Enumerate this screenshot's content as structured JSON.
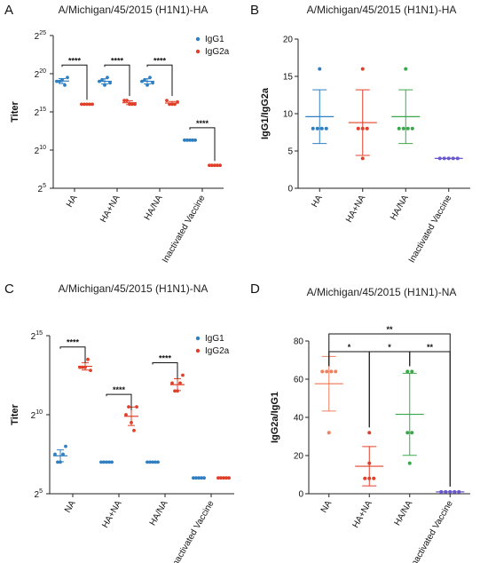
{
  "chart_data": [
    {
      "panel": "A",
      "type": "scatter",
      "title": "A/Michigan/45/2015 (H1N1)-HA",
      "ylabel": "Titer",
      "yscale": "log2",
      "ylim": [
        5,
        25
      ],
      "yticks": [
        {
          "base": "2",
          "exp": "5"
        },
        {
          "base": "2",
          "exp": "10"
        },
        {
          "base": "2",
          "exp": "15"
        },
        {
          "base": "2",
          "exp": "20"
        },
        {
          "base": "2",
          "exp": "25"
        }
      ],
      "categories": [
        "HA",
        "HA+NA",
        "HA/NA",
        "Inactivated Vaccine"
      ],
      "legend": [
        "IgG1",
        "IgG2a"
      ],
      "series": [
        {
          "name": "IgG1",
          "color": "#2f7fc1",
          "points": [
            [
              19,
              19,
              19.2,
              18.5,
              19.5
            ],
            [
              19,
              19.2,
              18.5,
              19.5,
              18.8
            ],
            [
              19,
              19.2,
              18.5,
              19.5,
              18.8
            ],
            [
              11.3,
              11.3,
              11.3,
              11.3,
              11.3
            ]
          ]
        },
        {
          "name": "IgG2a",
          "color": "#e0402a",
          "points": [
            [
              16,
              16,
              16,
              16,
              16
            ],
            [
              16.5,
              16.5,
              16,
              16,
              16
            ],
            [
              16.5,
              16,
              16,
              16,
              16.3
            ],
            [
              8,
              8,
              8,
              8,
              8
            ]
          ]
        }
      ],
      "significance": [
        {
          "group": 0,
          "label": "****"
        },
        {
          "group": 1,
          "label": "****"
        },
        {
          "group": 2,
          "label": "****"
        },
        {
          "group": 3,
          "label": "****"
        }
      ]
    },
    {
      "panel": "B",
      "type": "scatter",
      "title": "A/Michigan/45/2015 (H1N1)-HA",
      "ylabel": "IgG1/IgG2a",
      "ylim": [
        0,
        20
      ],
      "yticks": [
        "0",
        "5",
        "10",
        "15",
        "20"
      ],
      "categories": [
        "HA",
        "HA+NA",
        "HA/NA",
        "Inactivated Vaccine"
      ],
      "colors": [
        "#2f7fc1",
        "#e0402a",
        "#3aa84a",
        "#6a5acd"
      ],
      "points": [
        [
          16,
          8,
          8,
          8,
          8
        ],
        [
          16,
          8,
          8,
          8,
          4
        ],
        [
          16,
          8,
          8,
          8,
          8
        ],
        [
          4,
          4,
          4,
          4,
          4
        ]
      ],
      "mean": [
        9.6,
        8.8,
        9.6,
        4
      ],
      "sd": [
        3.6,
        4.4,
        3.6,
        0
      ]
    },
    {
      "panel": "C",
      "type": "scatter",
      "title": "A/Michigan/45/2015 (H1N1)-NA",
      "ylabel": "Titer",
      "yscale": "log2",
      "ylim": [
        5,
        15
      ],
      "yticks": [
        {
          "base": "2",
          "exp": "5"
        },
        {
          "base": "2",
          "exp": "10"
        },
        {
          "base": "2",
          "exp": "15"
        }
      ],
      "categories": [
        "NA",
        "HA+NA",
        "HA/NA",
        "Inactivated Vaccine"
      ],
      "legend": [
        "IgG1",
        "IgG2a"
      ],
      "series": [
        {
          "name": "IgG1",
          "color": "#2f7fc1",
          "points": [
            [
              7.5,
              7,
              7,
              7.5,
              8
            ],
            [
              7,
              7,
              7,
              7,
              7
            ],
            [
              7,
              7,
              7,
              7,
              7
            ],
            [
              6,
              6,
              6,
              6,
              6
            ]
          ]
        },
        {
          "name": "IgG2a",
          "color": "#e0402a",
          "points": [
            [
              13,
              13,
              13,
              13.5,
              12.8
            ],
            [
              10,
              10.5,
              9.5,
              9,
              10.5
            ],
            [
              12,
              11.5,
              11.5,
              12,
              12.5
            ],
            [
              6,
              6,
              6,
              6,
              6
            ]
          ]
        }
      ],
      "significance": [
        {
          "group": 0,
          "label": "****"
        },
        {
          "group": 1,
          "label": "****"
        },
        {
          "group": 2,
          "label": "****"
        }
      ]
    },
    {
      "panel": "D",
      "type": "scatter",
      "title": "A/Michigan/45/2015 (H1N1)-NA",
      "ylabel": "IgG2a/IgG1",
      "ylim": [
        0,
        80
      ],
      "yticks": [
        "0",
        "20",
        "40",
        "60",
        "80"
      ],
      "categories": [
        "NA",
        "HA+NA",
        "HA/NA",
        "Inactivated Vaccine"
      ],
      "colors": [
        "#f08060",
        "#e0402a",
        "#3aa84a",
        "#6a5acd"
      ],
      "points": [
        [
          64,
          64,
          64,
          64,
          32
        ],
        [
          32,
          16,
          8,
          8,
          8
        ],
        [
          64,
          64,
          32,
          32,
          16
        ],
        [
          1,
          1,
          1,
          1,
          1
        ]
      ],
      "mean": [
        57.6,
        14.4,
        41.6,
        1
      ],
      "sd": [
        14.3,
        10.3,
        21.5,
        0
      ],
      "comparisons": [
        {
          "from": 0,
          "to": 3,
          "label": "**",
          "level": 0
        },
        {
          "from": 0,
          "to": 1,
          "label": "*",
          "level": 1
        },
        {
          "from": 1,
          "to": 2,
          "label": "*",
          "level": 1
        },
        {
          "from": 2,
          "to": 3,
          "label": "**",
          "level": 1
        }
      ]
    }
  ],
  "panel_letters": [
    "A",
    "B",
    "C",
    "D"
  ]
}
